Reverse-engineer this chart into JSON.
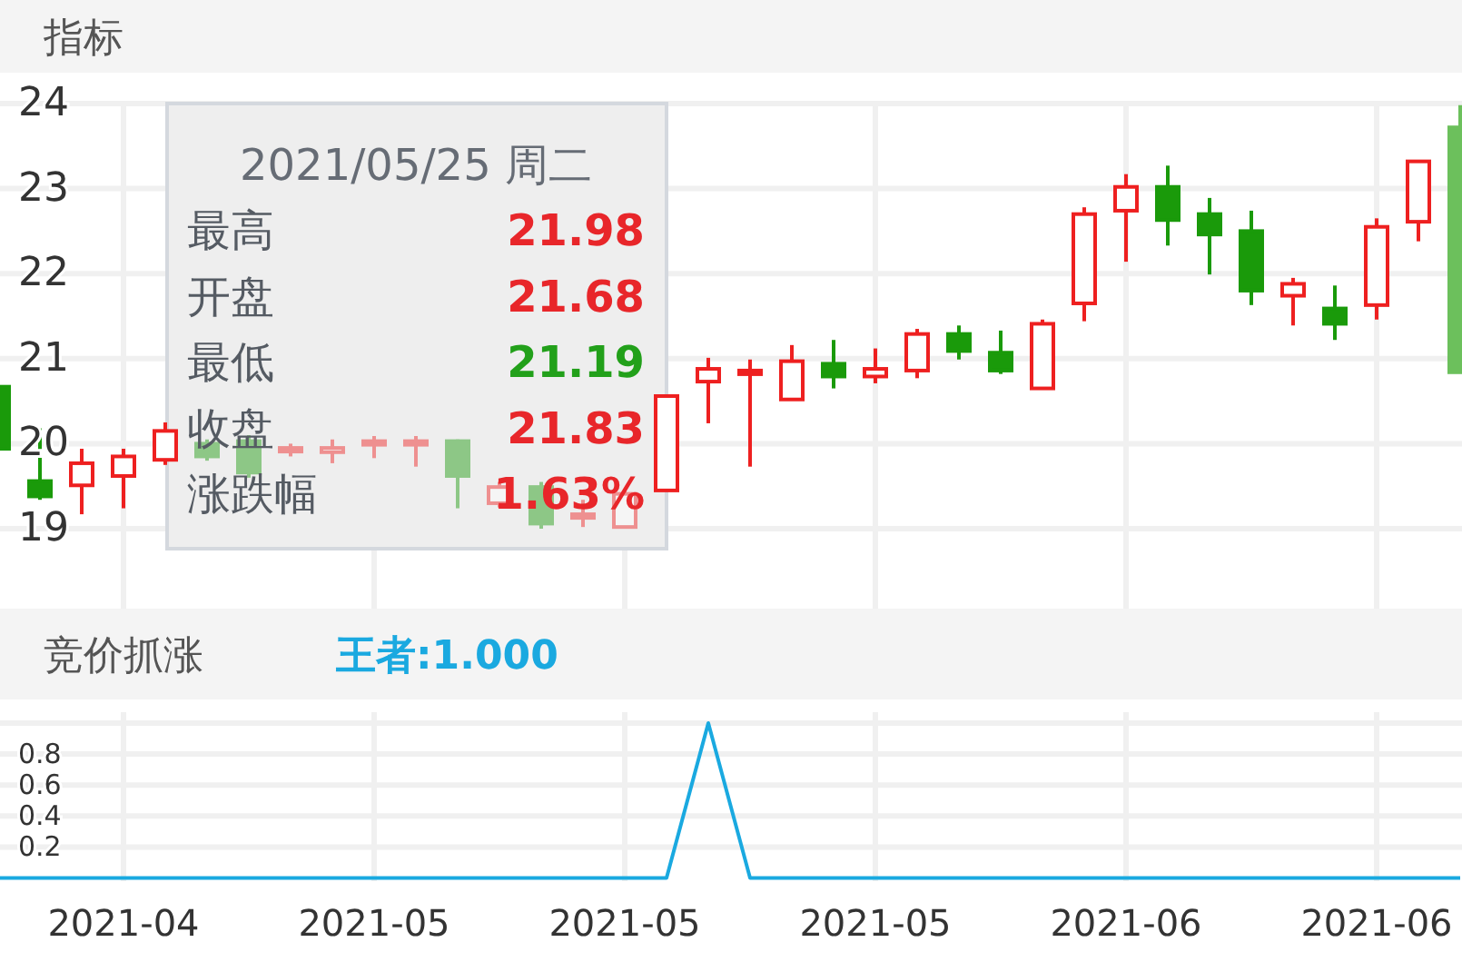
{
  "chart_data": [
    {
      "type": "candlestick",
      "title": "指标",
      "categories": [
        null,
        null,
        null,
        "2021-04",
        null,
        null,
        null,
        null,
        null,
        "2021-05",
        null,
        null,
        null,
        null,
        null,
        "2021-05",
        null,
        null,
        null,
        null,
        null,
        "2021-05",
        null,
        null,
        null,
        null,
        null,
        "2021-06",
        null,
        null,
        null,
        null,
        null,
        "2021-06",
        null,
        null
      ],
      "ohlc": [
        [
          20.67,
          20.67,
          19.94,
          19.94
        ],
        [
          19.56,
          20.18,
          19.34,
          19.38
        ],
        [
          19.51,
          19.94,
          19.17,
          19.77
        ],
        [
          19.62,
          19.94,
          19.24,
          19.85
        ],
        [
          19.81,
          20.25,
          19.75,
          20.15
        ],
        [
          20.0,
          20.05,
          19.8,
          19.85
        ],
        [
          20.03,
          20.1,
          19.6,
          19.66
        ],
        [
          19.92,
          20.0,
          19.85,
          19.95
        ],
        [
          19.9,
          20.05,
          19.77,
          19.95
        ],
        [
          20.0,
          20.09,
          19.83,
          20.03
        ],
        [
          20.0,
          20.09,
          19.73,
          20.03
        ],
        [
          20.03,
          20.05,
          19.24,
          19.62
        ],
        [
          19.3,
          19.55,
          19.25,
          19.49
        ],
        [
          19.49,
          19.55,
          19.0,
          19.06
        ],
        [
          19.15,
          19.34,
          19.02,
          19.17
        ],
        [
          19.02,
          19.45,
          19.0,
          19.41
        ],
        [
          19.45,
          20.56,
          19.45,
          20.56
        ],
        [
          20.73,
          21.01,
          20.24,
          20.88
        ],
        [
          20.84,
          20.99,
          19.73,
          20.86
        ],
        [
          20.52,
          21.16,
          20.52,
          20.97
        ],
        [
          20.94,
          21.22,
          20.65,
          20.79
        ],
        [
          20.79,
          21.12,
          20.71,
          20.88
        ],
        [
          20.86,
          21.35,
          20.77,
          21.29
        ],
        [
          21.29,
          21.39,
          20.99,
          21.09
        ],
        [
          21.07,
          21.33,
          20.82,
          20.86
        ],
        [
          20.65,
          21.46,
          20.65,
          21.41
        ],
        [
          21.65,
          22.78,
          21.44,
          22.7
        ],
        [
          22.74,
          23.17,
          22.14,
          23.02
        ],
        [
          23.02,
          23.27,
          22.33,
          22.63
        ],
        [
          22.7,
          22.89,
          21.99,
          22.46
        ],
        [
          22.5,
          22.74,
          21.63,
          21.8
        ],
        [
          21.74,
          21.95,
          21.39,
          21.88
        ],
        [
          21.59,
          21.86,
          21.22,
          21.41
        ],
        [
          21.63,
          22.65,
          21.46,
          22.55
        ],
        [
          22.61,
          23.32,
          22.38,
          23.32
        ],
        [
          23.72,
          23.98,
          20.84,
          20.84
        ]
      ],
      "colors": [
        "#1a9a0a",
        "#1a9a0a",
        "#ee2020",
        "#ee2020",
        "#ee2020",
        "#1a9a0a",
        "#1a9a0a",
        "#ee2020",
        "#ee2020",
        "#ee2020",
        "#ee2020",
        "#1a9a0a",
        "#ee2020",
        "#1a9a0a",
        "#ee2020",
        "#ee2020",
        "#ee2020",
        "#ee2020",
        "#ee2020",
        "#ee2020",
        "#1a9a0a",
        "#ee2020",
        "#ee2020",
        "#1a9a0a",
        "#1a9a0a",
        "#ee2020",
        "#ee2020",
        "#ee2020",
        "#1a9a0a",
        "#1a9a0a",
        "#1a9a0a",
        "#ee2020",
        "#1a9a0a",
        "#ee2020",
        "#ee2020",
        "#6cc05c"
      ],
      "ylim": [
        18.06,
        24
      ],
      "yticks": [
        19,
        20,
        21,
        22,
        23,
        24
      ],
      "grid": true,
      "tick_labels": "y",
      "annotations": [
        "2021/05/25 周二",
        "最高",
        "21.98",
        "开盘",
        "21.68",
        "最低",
        "21.19",
        "收盘",
        "21.83",
        "涨跌幅",
        "1.63%"
      ]
    },
    {
      "type": "line",
      "title": "竞价抓涨",
      "categories": [
        null,
        null,
        null,
        "2021-04",
        null,
        null,
        null,
        null,
        null,
        "2021-05",
        null,
        null,
        null,
        null,
        null,
        "2021-05",
        null,
        null,
        null,
        null,
        null,
        "2021-05",
        null,
        null,
        null,
        null,
        null,
        "2021-06",
        null,
        null,
        null,
        null,
        null,
        "2021-06",
        null,
        null
      ],
      "series": [
        {
          "name": "王者:1.000",
          "color": "#1aa9e0",
          "values": [
            0,
            0,
            0,
            0,
            0,
            0,
            0,
            0,
            0,
            0,
            0,
            0,
            0,
            0,
            0,
            0,
            0,
            1,
            0,
            0,
            0,
            0,
            0,
            0,
            0,
            0,
            0,
            0,
            0,
            0,
            0,
            0,
            0,
            0,
            0,
            0
          ]
        }
      ],
      "ylim": [
        -0.02,
        1.07
      ],
      "yticks": [
        0.2,
        0.4,
        0.6,
        0.8,
        {
          "value": 1,
          "label": null
        }
      ],
      "grid": true
    }
  ]
}
